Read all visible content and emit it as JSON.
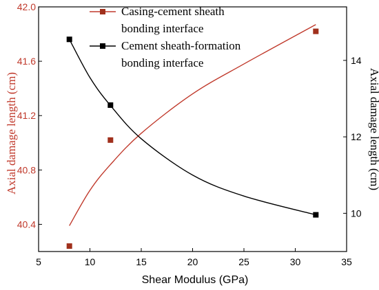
{
  "chart_data": {
    "type": "scatter",
    "xlabel": "Shear Modulus (GPa)",
    "xlim": [
      5,
      35
    ],
    "x_ticks": [
      5,
      10,
      15,
      20,
      25,
      30,
      35
    ],
    "y_left": {
      "label": "Axial damage length (cm)",
      "lim": [
        40.2,
        42.0
      ],
      "ticks": [
        40.4,
        40.8,
        41.2,
        41.6,
        42.0
      ],
      "color": "#c0392b"
    },
    "y_right": {
      "label": "Axial damage length (cm)",
      "lim": [
        9.0,
        15.4
      ],
      "ticks": [
        10,
        12,
        14
      ],
      "color": "#000000"
    },
    "series": [
      {
        "name_lines": [
          "Casing-cement sheath",
          "bonding interface"
        ],
        "axis": "left",
        "marker_color": "#a0301c",
        "line_color": "#c0392b",
        "points": [
          [
            8,
            40.24
          ],
          [
            12,
            41.02
          ],
          [
            32,
            41.82
          ]
        ],
        "fit": [
          [
            8,
            40.39
          ],
          [
            10,
            40.65
          ],
          [
            12,
            40.84
          ],
          [
            15,
            41.07
          ],
          [
            20,
            41.36
          ],
          [
            25,
            41.58
          ],
          [
            32,
            41.87
          ]
        ]
      },
      {
        "name_lines": [
          "Cement sheath-formation",
          "bonding interface"
        ],
        "axis": "right",
        "marker_color": "#000000",
        "line_color": "#000000",
        "points": [
          [
            8,
            14.55
          ],
          [
            12,
            12.83
          ],
          [
            32,
            9.96
          ]
        ],
        "fit": [
          [
            8,
            14.55
          ],
          [
            10,
            13.55
          ],
          [
            12,
            12.82
          ],
          [
            15,
            11.95
          ],
          [
            20,
            11.0
          ],
          [
            25,
            10.45
          ],
          [
            32,
            9.96
          ]
        ]
      }
    ],
    "legend_position": "top-left"
  }
}
